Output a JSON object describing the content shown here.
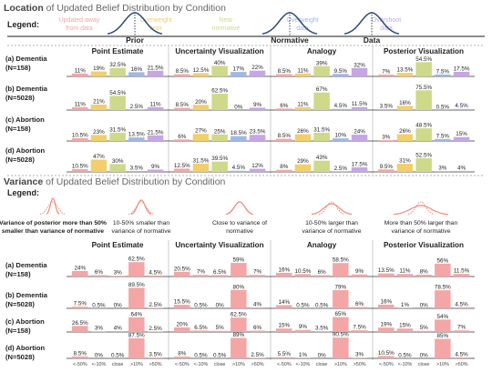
{
  "top": {
    "title_bold": "Location",
    "title_rest": " of Updated Belief Distribution by Condition",
    "legend_label": "Legend:",
    "legend_items": [
      {
        "text": [
          "Updated away",
          "from data"
        ],
        "color": "#f4a6a6"
      },
      {
        "text": [
          "Overweight",
          "prior"
        ],
        "color": "#f2cf6b"
      },
      {
        "text": [
          "Near",
          "normative"
        ],
        "color": "#cfd98a"
      },
      {
        "text": [
          "Overweight",
          "data"
        ],
        "color": "#9fb8e6"
      },
      {
        "text": [
          "Overshoot",
          "data"
        ],
        "color": "#c6a6e6"
      }
    ],
    "curve_labels": [
      "Prior",
      "Normative",
      "Data"
    ]
  },
  "bottom": {
    "title_bold": "Variance",
    "title_rest": " of Updated Belief Distribution by Condition",
    "legend_label": "Legend:",
    "legend_items": [
      [
        "Variance of posterior more than 50%",
        "smaller than variance of normative"
      ],
      [
        "10-50% smaller than",
        "variance of normative"
      ],
      [
        "Close to variance of",
        "normative"
      ],
      [
        "10-50% larger than",
        "variance of normative"
      ],
      [
        "More than 50% larger than",
        "variance of normative"
      ]
    ],
    "xtick_labels": [
      "<-50%",
      "<-10%",
      "close",
      ">10%",
      ">50%"
    ]
  },
  "colors": {
    "loc": [
      "#f4a6a6",
      "#f2cf6b",
      "#cfd98a",
      "#9fb8e6",
      "#c6a6e6"
    ],
    "var": "#f4a6a6",
    "axis": "#333333",
    "separator": "#999999"
  },
  "chart_data": [
    {
      "type": "bar",
      "title": "Location of Updated Belief Distribution by Condition",
      "panels": [
        "Point Estimate",
        "Uncertainty Visualization",
        "Analogy",
        "Posterior Visualization"
      ],
      "rows": [
        "(a) Dementia (N=158)",
        "(b) Dementia (N=5028)",
        "(c) Abortion (N=158)",
        "(d) Abortion (N=5028)"
      ],
      "row_labels": [
        [
          "(a) Dementia",
          "(N=158)"
        ],
        [
          "(b) Dementia",
          "(N=5028)"
        ],
        [
          "(c) Abortion",
          "(N=158)"
        ],
        [
          "(d) Abortion",
          "(N=5028)"
        ]
      ],
      "categories": [
        "Updated away from data",
        "Overweight prior",
        "Near normative",
        "Overweight data",
        "Overshoot data"
      ],
      "ylim": [
        0,
        80
      ],
      "values": [
        [
          [
            "11%",
            "19%",
            "32.5%",
            "16%",
            "21.5%"
          ],
          [
            "8.5%",
            "12.5%",
            "40%",
            "17%",
            "22%"
          ],
          [
            "8.5%",
            "11%",
            "39%",
            "9.5%",
            "32%"
          ],
          [
            "7%",
            "13.5%",
            "54.5%",
            "7.5%",
            "17.5%"
          ]
        ],
        [
          [
            "11%",
            "21%",
            "54.5%",
            "2.5%",
            "11%"
          ],
          [
            "8.5%",
            "20%",
            "62.5%",
            "0%",
            "9%"
          ],
          [
            "6%",
            "11%",
            "67%",
            "4.5%",
            "11.5%"
          ],
          [
            "3.5%",
            "16%",
            "75.5%",
            "0.5%",
            "4.5%"
          ]
        ],
        [
          [
            "10.5%",
            "23%",
            "31.5%",
            "13.5%",
            "21.5%"
          ],
          [
            "6%",
            "27%",
            "25%",
            "18.5%",
            "23.5%"
          ],
          [
            "8.5%",
            "26%",
            "31.5%",
            "10%",
            "24%"
          ],
          [
            "3%",
            "26%",
            "48.5%",
            "7.5%",
            "15%"
          ]
        ],
        [
          [
            "10.5%",
            "47%",
            "30%",
            "3.5%",
            "9%"
          ],
          [
            "12.5%",
            "31.5%",
            "39.5%",
            "4.5%",
            "12%"
          ],
          [
            "8%",
            "29%",
            "43%",
            "2.5%",
            "17.5%"
          ],
          [
            "9.5%",
            "31%",
            "52.5%",
            "3%",
            "4%"
          ]
        ]
      ]
    },
    {
      "type": "bar",
      "title": "Variance of Updated Belief Distribution by Condition",
      "panels": [
        "Point Estimate",
        "Uncertainty Visualization",
        "Analogy",
        "Posterior Visualization"
      ],
      "rows": [
        "(a) Dementia (N=158)",
        "(b) Dementia (N=5028)",
        "(c) Abortion (N=158)",
        "(d) Abortion (N=5028)"
      ],
      "row_labels": [
        [
          "(a) Dementia",
          "(N=158)"
        ],
        [
          "(b) Dementia",
          "(N=5028)"
        ],
        [
          "(c) Abortion",
          "(N=158)"
        ],
        [
          "(d) Abortion",
          "(N=5028)"
        ]
      ],
      "categories": [
        "<-50%",
        "<-10%",
        "close",
        ">10%",
        ">50%"
      ],
      "ylim": [
        0,
        95
      ],
      "values": [
        [
          [
            "24%",
            "6%",
            "3%",
            "62.5%",
            "4.5%"
          ],
          [
            "20.5%",
            "7%",
            "6.5%",
            "59%",
            "7%"
          ],
          [
            "16%",
            "10.5%",
            "6%",
            "58.5%",
            "9%"
          ],
          [
            "13.5%",
            "11%",
            "8%",
            "56%",
            "11.5%"
          ]
        ],
        [
          [
            "7.5%",
            "0.5%",
            "0%",
            "89.5%",
            "2.5%"
          ],
          [
            "15.5%",
            "0.5%",
            "0%",
            "80%",
            "4%"
          ],
          [
            "14%",
            "0.5%",
            "0.5%",
            "79%",
            "6%"
          ],
          [
            "16%",
            "1%",
            "0%",
            "78.5%",
            "4.5%"
          ]
        ],
        [
          [
            "26.5%",
            "3%",
            "4%",
            "64%",
            "2.5%"
          ],
          [
            "20%",
            "6.5%",
            "5%",
            "62.5%",
            "6%"
          ],
          [
            "15%",
            "9%",
            "3.5%",
            "65%",
            "7.5%"
          ],
          [
            "19%",
            "15%",
            "5%",
            "54%",
            "7%"
          ]
        ],
        [
          [
            "8.5%",
            "0%",
            "0.5%",
            "87.5%",
            "3.5%"
          ],
          [
            "8%",
            "0.5%",
            "0.5%",
            "89%",
            "2.5%"
          ],
          [
            "5.5%",
            "1%",
            "0%",
            "90.5%",
            "3%"
          ],
          [
            "10.5%",
            "0.5%",
            "0%",
            "85%",
            "4.5%"
          ]
        ]
      ]
    }
  ]
}
